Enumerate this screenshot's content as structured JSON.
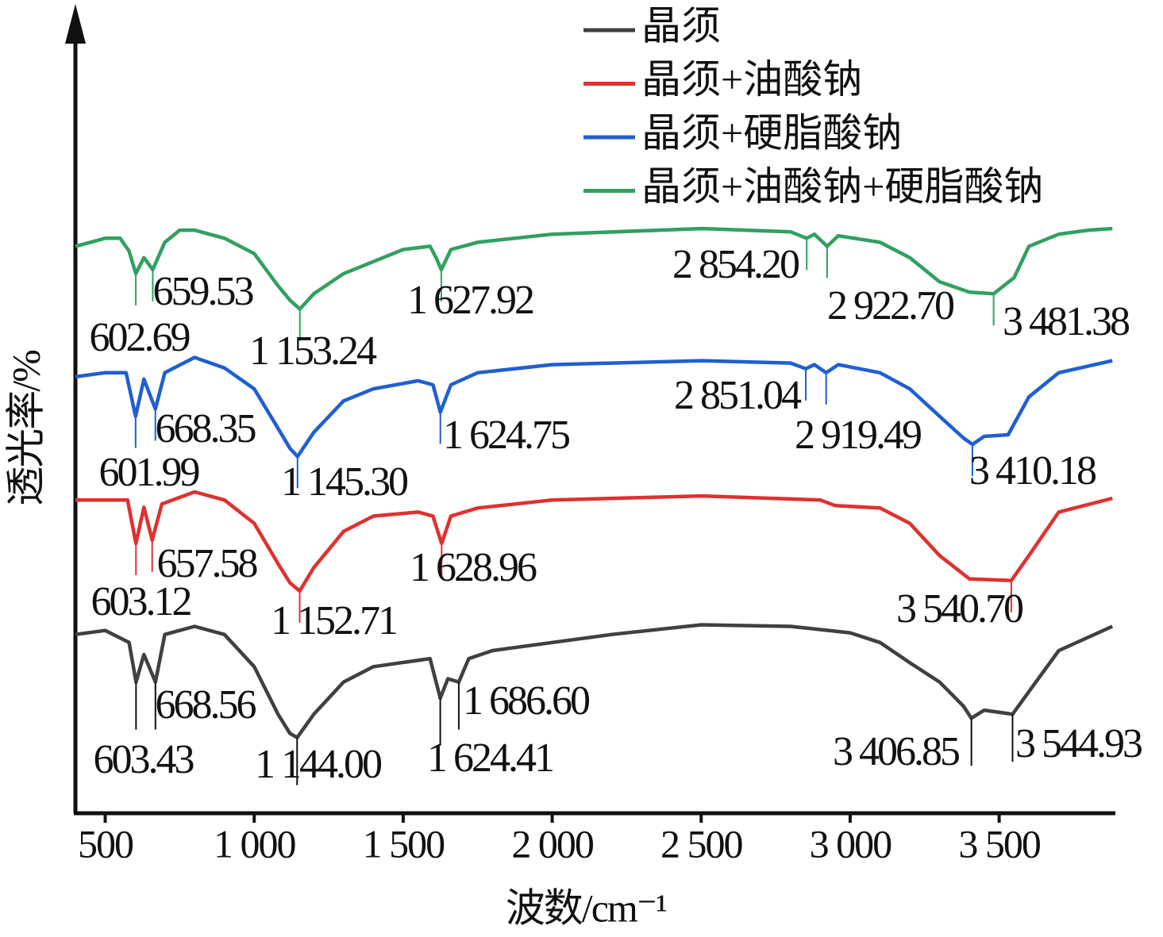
{
  "chart_data": {
    "type": "line",
    "x_label": "波数/cm⁻¹",
    "y_label": "透光率/%",
    "xlim": [
      400,
      3890
    ],
    "ylim": [
      0,
      100
    ],
    "xticks": [
      500,
      {
        "value": 1000,
        "label": "1 000"
      },
      {
        "value": 1500,
        "label": "1 500"
      },
      {
        "value": 2000,
        "label": "2 000"
      },
      {
        "value": 2500,
        "label": "2 500"
      },
      {
        "value": 3000,
        "label": "3 000"
      },
      {
        "value": 3500,
        "label": "3 500"
      }
    ],
    "series": [
      {
        "name": "晶须",
        "color": "#404040",
        "x": [
          400,
          500,
          580,
          603.43,
          630,
          668.56,
          700,
          800,
          900,
          1000,
          1080,
          1120,
          1144.0,
          1200,
          1300,
          1400,
          1590,
          1624.41,
          1650,
          1686.6,
          1720,
          1800,
          2000,
          2200,
          2500,
          2800,
          3000,
          3100,
          3200,
          3300,
          3380,
          3406.85,
          3450,
          3544.93,
          3600,
          3700,
          3880
        ],
        "values": [
          22.2,
          22.7,
          21.2,
          16.3,
          19.7,
          16.3,
          22.2,
          23.2,
          22.2,
          18.2,
          12.3,
          9.9,
          9.4,
          12.3,
          16.3,
          18.2,
          19.2,
          14.3,
          16.7,
          16.3,
          19.2,
          20.2,
          21.2,
          22.2,
          23.4,
          23.2,
          22.4,
          21.2,
          18.7,
          16.3,
          13.3,
          11.8,
          12.8,
          12.3,
          15.1,
          20.2,
          23.2
        ],
        "peaks": [
          {
            "value": 603.43,
            "label": "603.43"
          },
          {
            "value": 668.56,
            "label": "668.56"
          },
          {
            "value": 1144.0,
            "label": "1 144.00"
          },
          {
            "value": 1686.6,
            "label": "1 686.60"
          },
          {
            "value": 1624.41,
            "label": "1 624.41"
          },
          {
            "value": 3406.85,
            "label": "3 406.85"
          },
          {
            "value": 3544.93,
            "label": "3 544.93"
          }
        ]
      },
      {
        "name": "晶须+油酸钠",
        "color": "#e03030",
        "x": [
          400,
          500,
          575,
          603.12,
          630,
          657.58,
          690,
          800,
          900,
          1000,
          1080,
          1120,
          1152.71,
          1200,
          1300,
          1400,
          1550,
          1600,
          1628.96,
          1660,
          1750,
          2000,
          2500,
          2900,
          2950,
          3100,
          3200,
          3300,
          3400,
          3540.7,
          3600,
          3700,
          3880
        ],
        "values": [
          38.9,
          38.9,
          38.9,
          33.5,
          38.0,
          33.9,
          38.4,
          39.9,
          38.9,
          36.0,
          31.0,
          28.6,
          27.6,
          30.5,
          35.0,
          36.9,
          37.4,
          36.9,
          33.5,
          36.9,
          37.9,
          38.9,
          39.4,
          38.9,
          38.2,
          37.9,
          36.0,
          32.0,
          29.1,
          28.9,
          32.0,
          37.4,
          39.1
        ],
        "peaks": [
          {
            "value": 603.12,
            "label": "603.12"
          },
          {
            "value": 657.58,
            "label": "657.58"
          },
          {
            "value": 1152.71,
            "label": "1 152.71"
          },
          {
            "value": 1628.96,
            "label": "1 628.96"
          },
          {
            "value": 3540.7,
            "label": "3 540.70"
          }
        ]
      },
      {
        "name": "晶须+硬脂酸钠",
        "color": "#1f5fd0",
        "x": [
          400,
          500,
          570,
          601.99,
          630,
          668.35,
          700,
          800,
          900,
          1000,
          1080,
          1120,
          1145.3,
          1200,
          1300,
          1400,
          1550,
          1600,
          1624.75,
          1660,
          1750,
          2000,
          2500,
          2800,
          2851.04,
          2880,
          2919.49,
          2960,
          3100,
          3200,
          3300,
          3380,
          3410.18,
          3450,
          3530,
          3600,
          3700,
          3880
        ],
        "values": [
          54.2,
          54.7,
          54.7,
          49.3,
          53.9,
          50.2,
          54.7,
          56.6,
          55.3,
          52.7,
          47.8,
          45.3,
          44.3,
          47.3,
          51.2,
          52.7,
          53.7,
          53.2,
          49.8,
          53.2,
          54.7,
          55.7,
          56.2,
          55.9,
          55.2,
          55.7,
          54.7,
          55.7,
          54.7,
          52.7,
          49.3,
          46.6,
          45.8,
          46.8,
          47.0,
          51.7,
          54.7,
          56.2
        ],
        "peaks": [
          {
            "value": 601.99,
            "label": "601.99"
          },
          {
            "value": 668.35,
            "label": "668.35"
          },
          {
            "value": 1145.3,
            "label": "1 145.30"
          },
          {
            "value": 1624.75,
            "label": "1 624.75"
          },
          {
            "value": 2851.04,
            "label": "2 851.04"
          },
          {
            "value": 2919.49,
            "label": "2 919.49"
          },
          {
            "value": 3410.18,
            "label": "3 410.18"
          }
        ]
      },
      {
        "name": "晶须+油酸钠+硬脂酸钠",
        "color": "#30a060",
        "x": [
          400,
          450,
          500,
          550,
          580,
          602.69,
          630,
          659.53,
          700,
          750,
          800,
          900,
          1000,
          1080,
          1120,
          1153.24,
          1200,
          1300,
          1400,
          1500,
          1590,
          1610,
          1627.92,
          1660,
          1750,
          2000,
          2500,
          2800,
          2854.2,
          2880,
          2922.7,
          2960,
          3100,
          3200,
          3300,
          3400,
          3481.38,
          3550,
          3600,
          3700,
          3800,
          3880
        ],
        "values": [
          70.4,
          70.9,
          71.4,
          71.4,
          69.8,
          67.0,
          69.0,
          67.5,
          70.9,
          72.4,
          72.4,
          71.4,
          69.5,
          65.5,
          63.7,
          62.6,
          64.5,
          67.0,
          68.5,
          70.0,
          70.4,
          69.0,
          67.5,
          70.0,
          70.9,
          71.9,
          72.6,
          72.2,
          71.4,
          71.9,
          70.4,
          71.7,
          70.9,
          69.0,
          66.0,
          64.7,
          64.5,
          66.5,
          70.4,
          71.9,
          72.4,
          72.6
        ],
        "peaks": [
          {
            "value": 602.69,
            "label": "602.69"
          },
          {
            "value": 659.53,
            "label": "659.53"
          },
          {
            "value": 1153.24,
            "label": "1 153.24"
          },
          {
            "value": 1627.92,
            "label": "1 627.92"
          },
          {
            "value": 2854.2,
            "label": "2 854.20"
          },
          {
            "value": 2922.7,
            "label": "2 922.70"
          },
          {
            "value": 3481.38,
            "label": "3 481.38"
          }
        ]
      }
    ]
  }
}
